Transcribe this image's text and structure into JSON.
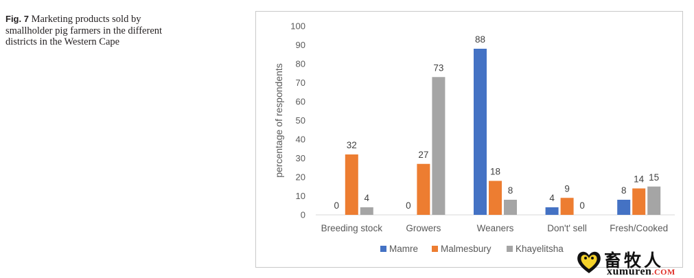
{
  "figure": {
    "label": "Fig. 7",
    "caption": "Marketing products sold by smallholder pig farmers in the different districts in the Western Cape"
  },
  "chart_data": {
    "type": "bar",
    "ylabel": "percentage of respondents",
    "xlabel": "",
    "ylim": [
      0,
      100
    ],
    "yticks": [
      0,
      10,
      20,
      30,
      40,
      50,
      60,
      70,
      80,
      90,
      100
    ],
    "grid": false,
    "legend_position": "bottom",
    "categories": [
      "Breeding stock",
      "Growers",
      "Weaners",
      "Don't' sell",
      "Fresh/Cooked"
    ],
    "series": [
      {
        "name": "Mamre",
        "color": "#4472c4",
        "values": [
          0,
          0,
          88,
          4,
          8
        ]
      },
      {
        "name": "Malmesbury",
        "color": "#ed7d31",
        "values": [
          32,
          27,
          18,
          9,
          14
        ]
      },
      {
        "name": "Khayelitsha",
        "color": "#a5a5a5",
        "values": [
          4,
          73,
          8,
          0,
          15
        ]
      }
    ]
  },
  "watermark": {
    "icon": "heart-logo-icon",
    "cn_text": "畜牧人",
    "url_main": "xumuren",
    "url_tld": ".COM"
  }
}
